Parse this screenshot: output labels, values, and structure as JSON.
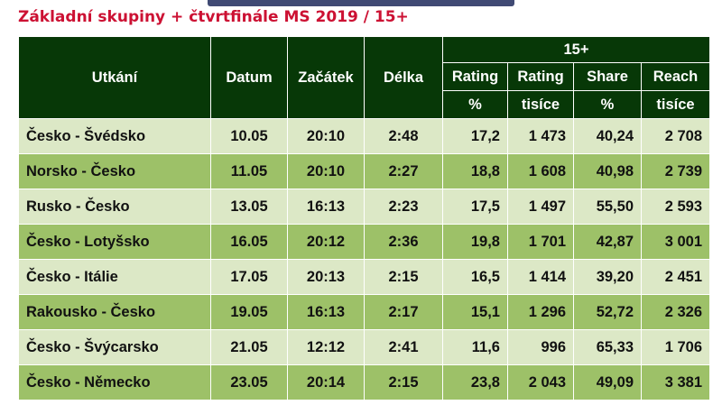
{
  "title": "Základní skupiny + čtvrtfinále MS 2019 / 15+",
  "header": {
    "match": "Utkání",
    "date": "Datum",
    "start": "Začátek",
    "length": "Délka",
    "group": "15+",
    "cols": [
      {
        "top": "Rating",
        "bottom": "%"
      },
      {
        "top": "Rating",
        "bottom": "tisíce"
      },
      {
        "top": "Share",
        "bottom": "%"
      },
      {
        "top": "Reach",
        "bottom": "tisíce"
      }
    ]
  },
  "rows": [
    [
      "Česko - Švédsko",
      "10.05",
      "20:10",
      "2:48",
      "17,2",
      "1 473",
      "40,24",
      "2 708"
    ],
    [
      "Norsko - Česko",
      "11.05",
      "20:10",
      "2:27",
      "18,8",
      "1 608",
      "40,98",
      "2 739"
    ],
    [
      "Rusko - Česko",
      "13.05",
      "16:13",
      "2:23",
      "17,5",
      "1 497",
      "55,50",
      "2 593"
    ],
    [
      "Česko - Lotyšsko",
      "16.05",
      "20:12",
      "2:36",
      "19,8",
      "1 701",
      "42,87",
      "3 001"
    ],
    [
      "Česko - Itálie",
      "17.05",
      "20:13",
      "2:15",
      "16,5",
      "1 414",
      "39,20",
      "2 451"
    ],
    [
      "Rakousko - Česko",
      "19.05",
      "16:13",
      "2:17",
      "15,1",
      "1 296",
      "52,72",
      "2 326"
    ],
    [
      "Česko - Švýcarsko",
      "21.05",
      "12:12",
      "2:41",
      "11,6",
      "996",
      "65,33",
      "1 706"
    ],
    [
      "Česko - Německo",
      "23.05",
      "20:14",
      "2:15",
      "23,8",
      "2 043",
      "49,09",
      "3 381"
    ]
  ],
  "colors": {
    "header": "#073807",
    "row_light": "#dce8c6",
    "row_dark": "#9dc168",
    "title": "#cc1133"
  }
}
